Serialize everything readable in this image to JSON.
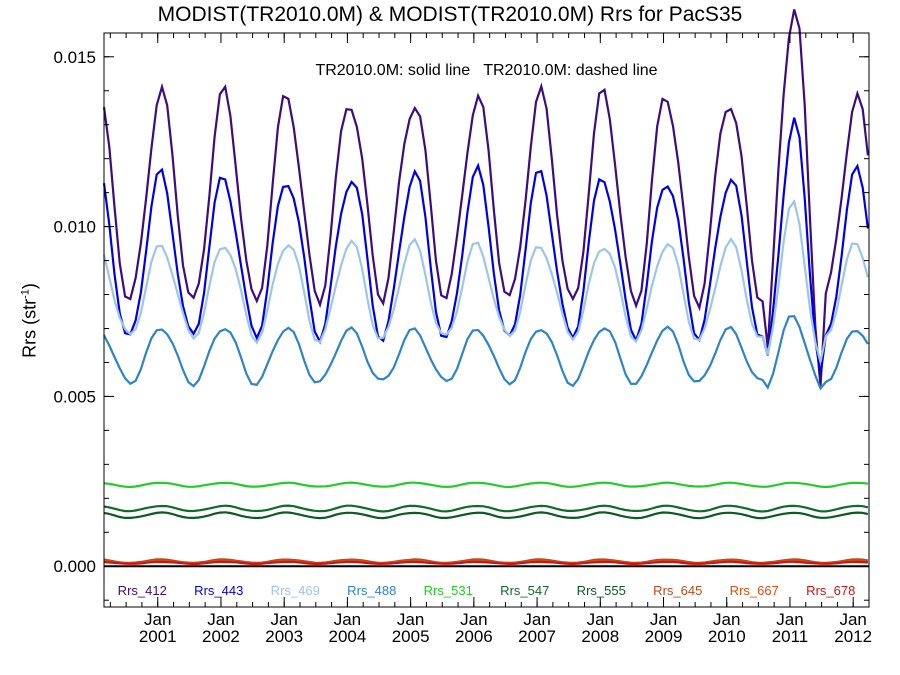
{
  "title": "MODIST(TR2010.0M) & MODIST(TR2010.0M)  Rrs for PacS35",
  "annotation": "TR2010.0M: solid line   TR2010.0M: dashed line",
  "chart_data": {
    "type": "line",
    "title": "MODIST(TR2010.0M) & MODIST(TR2010.0M)  Rrs for PacS35",
    "ylabel_text": "Rrs (str",
    "ylabel_sup": "-1",
    "ylabel_close": ")",
    "ylim": [
      -0.0012,
      0.0157
    ],
    "y_ticks": [
      0.0,
      0.005,
      0.01,
      0.015
    ],
    "y_tick_labels": [
      "0.000",
      "0.005",
      "0.010",
      "0.015"
    ],
    "x_range": [
      2000.15,
      2012.25
    ],
    "x_ticks": [
      2001,
      2002,
      2003,
      2004,
      2005,
      2006,
      2007,
      2008,
      2009,
      2010,
      2011,
      2012
    ],
    "x_tick_labels_top": [
      "Jan",
      "Jan",
      "Jan",
      "Jan",
      "Jan",
      "Jan",
      "Jan",
      "Jan",
      "Jan",
      "Jan",
      "Jan",
      "Jan"
    ],
    "x_tick_labels_bottom": [
      "2001",
      "2002",
      "2003",
      "2004",
      "2005",
      "2006",
      "2007",
      "2008",
      "2009",
      "2010",
      "2011",
      "2012"
    ],
    "legend_placement": "bottom",
    "series": [
      {
        "name": "Rrs_412",
        "color": "#3b0d7e",
        "base": 0.0108,
        "amp": 0.003,
        "amp_special": {
          "2011": 0.006
        }
      },
      {
        "name": "Rrs_443",
        "color": "#0000e8",
        "base": 0.0091,
        "amp": 0.0024,
        "amp_special": {
          "2011": 0.0038
        }
      },
      {
        "name": "Rrs_469",
        "color": "#9cc6e8",
        "base": 0.0081,
        "amp": 0.0014,
        "amp_special": {
          "2011": 0.0024
        }
      },
      {
        "name": "Rrs_488",
        "color": "#2f84c6",
        "base": 0.0062,
        "amp": 0.0008,
        "amp_special": {
          "2011": 0.0012
        }
      },
      {
        "name": "Rrs_531",
        "color": "#25cc25",
        "base": 0.0024,
        "amp": 6e-05
      },
      {
        "name": "Rrs_547",
        "color": "#0e6b2a",
        "base": 0.0017,
        "amp": 8e-05
      },
      {
        "name": "Rrs_555",
        "color": "#0a5a22",
        "base": 0.0015,
        "amp": 8e-05
      },
      {
        "name": "Rrs_645",
        "color": "#b84a1a",
        "base": 0.00015,
        "amp": 5e-05
      },
      {
        "name": "Rrs_667",
        "color": "#d94e10",
        "base": 0.00012,
        "amp": 4e-05
      },
      {
        "name": "Rrs_678",
        "color": "#cc1414",
        "base": 0.0001,
        "amp": 3e-05
      }
    ]
  }
}
